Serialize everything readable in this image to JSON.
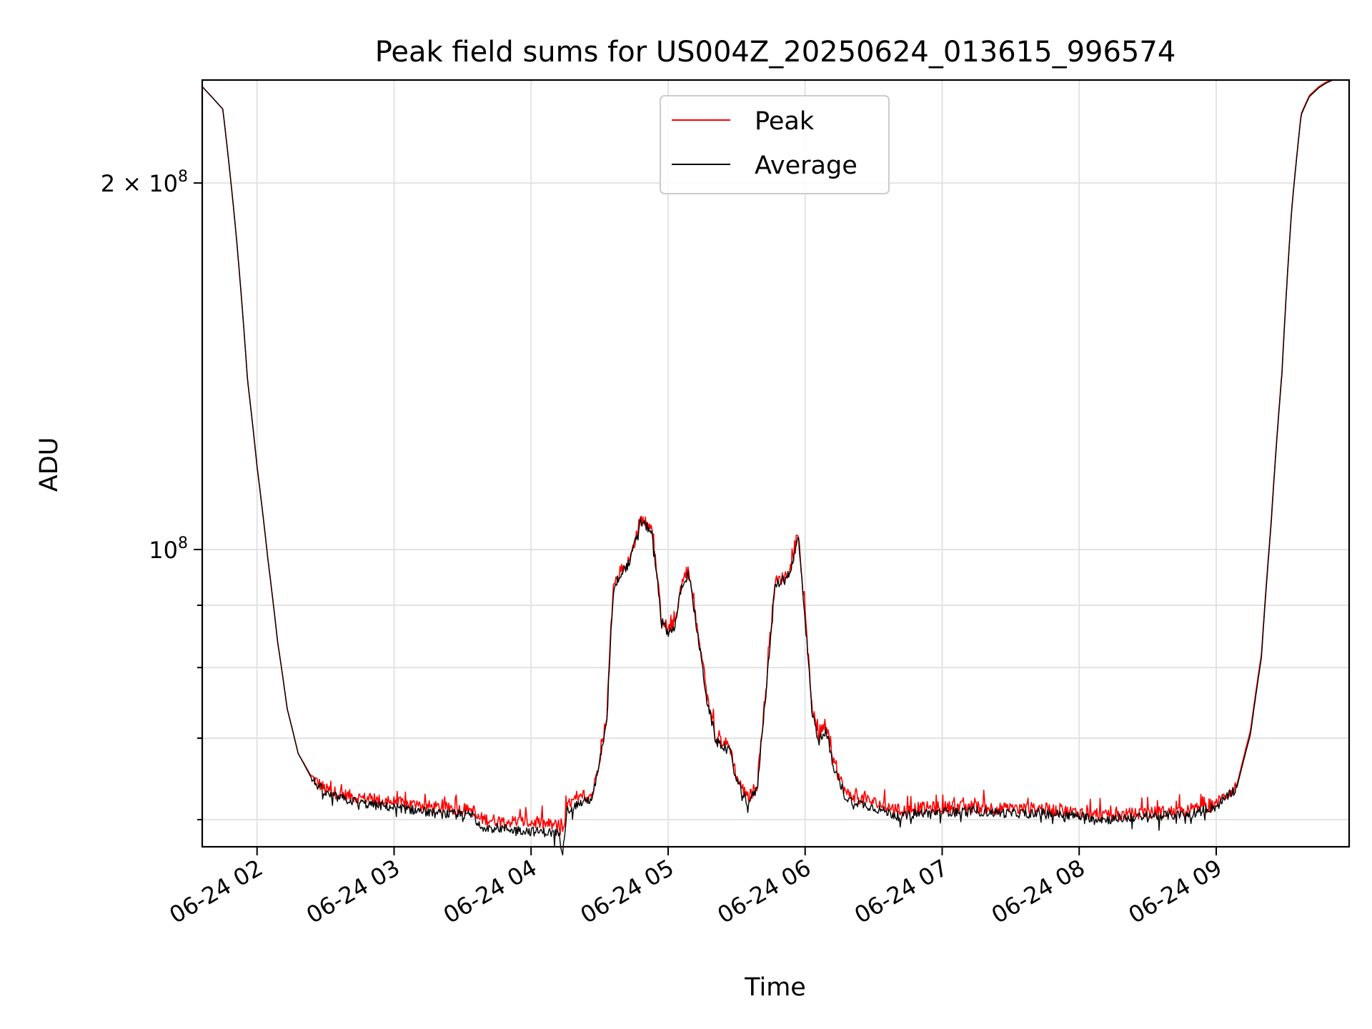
{
  "chart_data": {
    "type": "line",
    "title": "Peak field sums for US004Z_20250624_013615_996574",
    "xlabel": "Time",
    "ylabel": "ADU",
    "yscale": "log",
    "xlim": [
      1.6,
      9.97
    ],
    "ylim": [
      57000000,
      243000000
    ],
    "x_unit": "hours (06-24)",
    "x_tick_values": [
      2,
      3,
      4,
      5,
      6,
      7,
      8,
      9
    ],
    "x_tick_labels": [
      "06-24 02",
      "06-24 03",
      "06-24 04",
      "06-24 05",
      "06-24 06",
      "06-24 07",
      "06-24 08",
      "06-24 09"
    ],
    "y_tick_values": [
      100000000,
      200000000
    ],
    "y_tick_labels": [
      {
        "base": "10",
        "exp": "8"
      },
      {
        "base": "2 × 10",
        "exp": "8"
      }
    ],
    "y_minor_ticks": [
      60000000,
      70000000,
      80000000,
      90000000
    ],
    "grid": true,
    "legend": {
      "placement": "upper-center",
      "entries": [
        {
          "label": "Peak",
          "color": "#ff0000"
        },
        {
          "label": "Average",
          "color": "#000000"
        }
      ]
    },
    "series": [
      {
        "name": "Peak",
        "color": "#ff0000",
        "x": [
          1.6,
          1.75,
          1.85,
          1.93,
          2.0,
          2.08,
          2.15,
          2.22,
          2.3,
          2.4,
          2.5,
          2.6,
          2.8,
          3.0,
          3.2,
          3.3,
          3.59,
          3.6,
          3.8,
          4.0,
          4.2,
          4.23,
          4.26,
          4.3,
          4.45,
          4.55,
          4.6,
          4.65,
          4.72,
          4.8,
          4.88,
          4.95,
          5.0,
          5.05,
          5.1,
          5.15,
          5.2,
          5.28,
          5.35,
          5.45,
          5.5,
          5.58,
          5.65,
          5.72,
          5.78,
          5.85,
          5.9,
          5.95,
          6.0,
          6.05,
          6.1,
          6.15,
          6.2,
          6.3,
          6.5,
          6.7,
          6.8,
          7.0,
          7.2,
          7.5,
          7.7,
          8.0,
          8.2,
          8.5,
          8.8,
          9.0,
          9.15,
          9.25,
          9.33,
          9.4,
          9.48,
          9.55,
          9.62,
          9.68,
          9.75,
          9.8,
          9.85,
          9.97
        ],
        "y": [
          240000000,
          230000000,
          180000000,
          138000000,
          117000000,
          98000000,
          84000000,
          74000000,
          68000000,
          65000000,
          63500000,
          63000000,
          62400000,
          62000000,
          61600000,
          61400000,
          61000000,
          60200000,
          59800000,
          59700000,
          59300000,
          58000000,
          61500000,
          62000000,
          63000000,
          72000000,
          93000000,
          96000000,
          98000000,
          106000000,
          104000000,
          88000000,
          86000000,
          87000000,
          94000000,
          96000000,
          88000000,
          76000000,
          70000000,
          69000000,
          65000000,
          62500000,
          64000000,
          78000000,
          94000000,
          95000000,
          97000000,
          103000000,
          88000000,
          74000000,
          70000000,
          72000000,
          67000000,
          63000000,
          62000000,
          61000000,
          61300000,
          61400000,
          61500000,
          61200000,
          61300000,
          60800000,
          60400000,
          60800000,
          61000000,
          61800000,
          64000000,
          71000000,
          82000000,
          105000000,
          140000000,
          190000000,
          228000000,
          236000000,
          240000000,
          242000000,
          243000000,
          243000000
        ]
      },
      {
        "name": "Average",
        "color": "#000000",
        "x": [
          1.6,
          1.75,
          1.85,
          1.93,
          2.0,
          2.08,
          2.15,
          2.22,
          2.3,
          2.4,
          2.5,
          2.6,
          2.8,
          3.0,
          3.2,
          3.3,
          3.59,
          3.6,
          3.8,
          4.0,
          4.2,
          4.23,
          4.26,
          4.3,
          4.45,
          4.55,
          4.6,
          4.65,
          4.72,
          4.8,
          4.88,
          4.95,
          5.0,
          5.05,
          5.1,
          5.15,
          5.2,
          5.28,
          5.35,
          5.45,
          5.5,
          5.58,
          5.65,
          5.72,
          5.78,
          5.85,
          5.9,
          5.95,
          6.0,
          6.05,
          6.1,
          6.15,
          6.2,
          6.3,
          6.5,
          6.7,
          6.8,
          7.0,
          7.2,
          7.5,
          7.7,
          8.0,
          8.2,
          8.5,
          8.8,
          9.0,
          9.15,
          9.25,
          9.33,
          9.4,
          9.48,
          9.55,
          9.62,
          9.68,
          9.75,
          9.8,
          9.85,
          9.97
        ],
        "y": [
          240000000,
          230000000,
          180000000,
          138000000,
          117000000,
          98000000,
          84000000,
          74000000,
          68000000,
          64800000,
          63000000,
          62500000,
          61800000,
          61400000,
          61000000,
          60700000,
          60500000,
          59300000,
          59000000,
          58700000,
          58500000,
          56500000,
          61000000,
          61500000,
          62500000,
          71500000,
          92500000,
          95500000,
          97500000,
          105500000,
          103500000,
          87500000,
          85500000,
          86500000,
          93500000,
          95500000,
          87500000,
          75500000,
          69500000,
          68500000,
          64500000,
          62000000,
          63500000,
          77500000,
          93500000,
          94500000,
          96500000,
          102500000,
          87500000,
          73500000,
          69500000,
          71500000,
          66500000,
          62400000,
          61400000,
          60300000,
          60700000,
          60900000,
          61000000,
          60700000,
          60800000,
          60400000,
          60000000,
          60400000,
          60600000,
          61500000,
          63700000,
          70500000,
          81500000,
          104500000,
          139500000,
          189500000,
          227500000,
          235500000,
          239500000,
          241500000,
          243000000,
          243000000
        ]
      }
    ]
  }
}
